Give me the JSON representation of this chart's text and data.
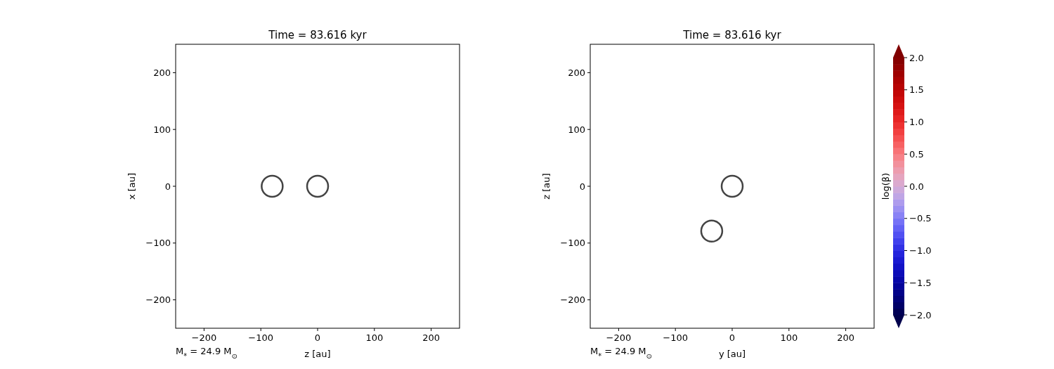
{
  "chart_data": [
    {
      "type": "scatter",
      "title": "Time = 83.616 kyr",
      "xlabel": "z [au]",
      "ylabel": "x [au]",
      "marker": "circle",
      "xlim": [
        -250,
        250
      ],
      "ylim": [
        -250,
        250
      ],
      "xticks": [
        -200,
        -100,
        0,
        100,
        200
      ],
      "yticks": [
        -200,
        -100,
        0,
        100,
        200
      ],
      "series": [
        {
          "color": "#444444",
          "x": [
            -80,
            0
          ],
          "values": [
            0,
            0
          ]
        }
      ],
      "annotations": [
        "M$_{*}$ = 24.9 M$_{⊙}$"
      ]
    },
    {
      "type": "scatter",
      "title": "Time = 83.616 kyr",
      "xlabel": "y [au]",
      "ylabel": "z [au]",
      "marker": "circle",
      "xlim": [
        -250,
        250
      ],
      "ylim": [
        -250,
        250
      ],
      "xticks": [
        -200,
        -100,
        0,
        100,
        200
      ],
      "yticks": [
        -200,
        -100,
        0,
        100,
        200
      ],
      "series": [
        {
          "color": "#444444",
          "x": [
            0,
            -36
          ],
          "values": [
            0,
            -79
          ]
        }
      ],
      "annotations": [
        "M$_{*}$ = 24.9 M$_{⊙}$"
      ],
      "clabel": "log(β)",
      "clim": [
        -2,
        2
      ],
      "cticks": [
        {
          "value": -2,
          "label": "−2.0"
        },
        {
          "value": -1.5,
          "label": "−1.5"
        },
        {
          "value": -1,
          "label": "−1.0"
        },
        {
          "value": -0.5,
          "label": "−0.5"
        },
        {
          "value": 0,
          "label": "0.0"
        },
        {
          "value": 0.5,
          "label": "0.5"
        },
        {
          "value": 1,
          "label": "1.0"
        },
        {
          "value": 1.5,
          "label": "1.5"
        },
        {
          "value": 2,
          "label": "2.0"
        }
      ]
    }
  ]
}
